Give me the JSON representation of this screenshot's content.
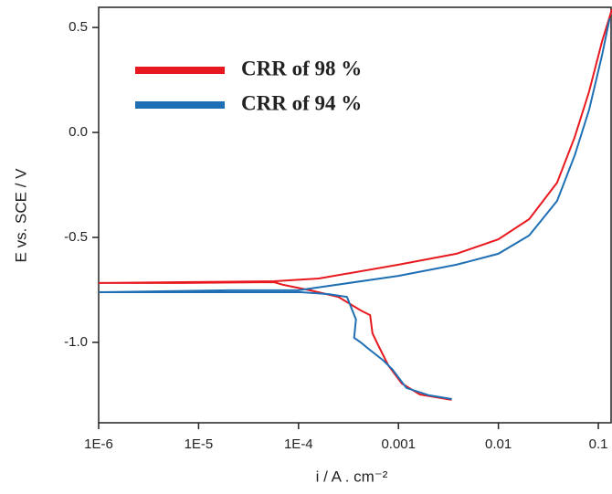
{
  "chart_data": {
    "type": "line",
    "x_label": "i / A . cm⁻²",
    "y_label": "E vs. SCE / V",
    "x_log": true,
    "xlim": [
      1e-06,
      0.137
    ],
    "ylim": [
      -1.383,
      0.596
    ],
    "xticks": [
      {
        "value": 1e-06,
        "label": "1E-6"
      },
      {
        "value": 1e-05,
        "label": "1E-5"
      },
      {
        "value": 0.0001,
        "label": "1E-4"
      },
      0.001,
      0.01,
      0.1
    ],
    "yticks": [
      0.5,
      {
        "value": 0,
        "label": "0.0"
      },
      -0.5,
      {
        "value": -1,
        "label": "-1.0"
      }
    ],
    "legend_position": "upper left",
    "series": [
      {
        "name": "CRR of 98 %",
        "color": "#e8191e",
        "x": [
          0.0034,
          0.00164,
          0.00108,
          0.00079,
          0.00064,
          0.00055,
          0.00052,
          0.00042,
          0.00025,
          0.00013,
          7e-05,
          5.7e-05,
          6.9e-06,
          1e-06,
          6.9e-06,
          5.7e-05,
          0.00016,
          0.001,
          0.0038,
          0.01,
          0.0203,
          0.0387,
          0.0581,
          0.0809,
          0.1092,
          0.137
        ],
        "values": [
          -1.274,
          -1.248,
          -1.196,
          -1.109,
          -1.022,
          -0.957,
          -0.87,
          -0.848,
          -0.783,
          -0.752,
          -0.726,
          -0.713,
          -0.717,
          -0.717,
          -0.713,
          -0.709,
          -0.696,
          -0.63,
          -0.578,
          -0.509,
          -0.413,
          -0.239,
          -0.022,
          0.196,
          0.435,
          0.587
        ]
      },
      {
        "name": "CRR of 94 %",
        "color": "#1f6fb4",
        "x": [
          0.00342,
          0.00202,
          0.0012,
          0.000873,
          0.000707,
          0.000515,
          0.000418,
          0.00036,
          0.000376,
          0.000305,
          0.0002,
          0.000106,
          1.98e-05,
          1e-06,
          1.98e-05,
          0.0001,
          0.001,
          0.0038,
          0.01,
          0.0203,
          0.0387,
          0.0581,
          0.0809,
          0.1092,
          0.1298
        ],
        "values": [
          -1.27,
          -1.252,
          -1.217,
          -1.13,
          -1.087,
          -1.035,
          -1.0,
          -0.978,
          -0.891,
          -0.783,
          -0.77,
          -0.761,
          -0.761,
          -0.761,
          -0.752,
          -0.752,
          -0.683,
          -0.63,
          -0.578,
          -0.491,
          -0.326,
          -0.109,
          0.109,
          0.37,
          0.543
        ]
      }
    ]
  }
}
